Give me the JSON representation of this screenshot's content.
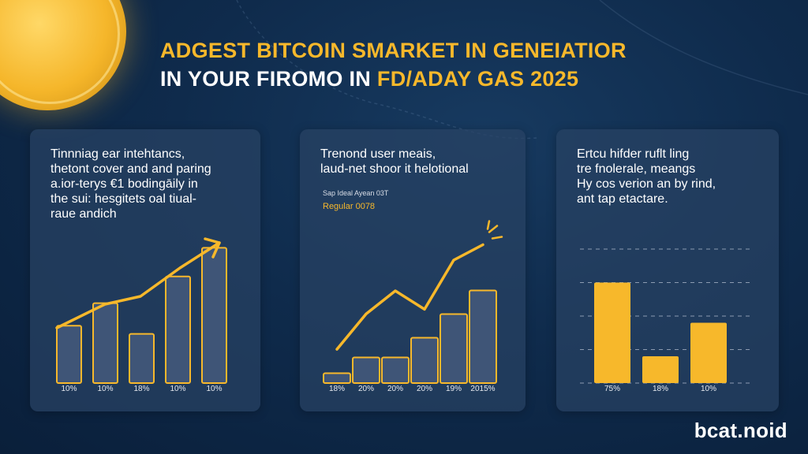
{
  "header": {
    "title_line1": "ADGEST BITCOIN SMARKET IN GENEIATIOR",
    "title_line2_a": "IN YOUR FIROMO IN ",
    "title_line2_b": "FD/ADAY GAS 2025"
  },
  "panels": [
    {
      "text_lines": [
        "Tinnniag ear intehtancs,",
        "thetont cover and and paring",
        "a.ior-terys €1 bodingāily in",
        "the sui: hesgitets oal tiual-",
        "raue andich"
      ]
    },
    {
      "text_lines": [
        "Trenond user meais,",
        "laud-net shoor it helotional"
      ],
      "sub_label": "Sap Ideal Ayean 03T",
      "accent_label": "Regular 0078"
    },
    {
      "text_lines": [
        "Ertcu hifder ruflt ling",
        "tre fnolerale, meangs",
        "Hy cos verion an by rind,",
        "ant tap etactare."
      ]
    }
  ],
  "brand": "bcat.noid",
  "colors": {
    "accent": "#f7b82b",
    "bar_gray": "#3f5577",
    "panel": "#28426a",
    "background": "#0f2b4c"
  },
  "chart_data": [
    {
      "type": "bar",
      "categories": [
        "10%",
        "10%",
        "18%",
        "10%",
        "10%"
      ],
      "values": [
        28,
        39,
        24,
        52,
        66
      ],
      "trend": "up",
      "ylim": [
        0,
        100
      ]
    },
    {
      "type": "bar",
      "categories": [
        "18%",
        "20%",
        "20%",
        "20%",
        "19%",
        "2015%"
      ],
      "values": [
        5,
        13,
        13,
        23,
        35,
        47
      ],
      "line_values": [
        22,
        45,
        60,
        48,
        80,
        90
      ],
      "ylim": [
        0,
        100
      ]
    },
    {
      "type": "bar",
      "categories": [
        "75%",
        "18%",
        "10%"
      ],
      "values": [
        60,
        16,
        36
      ],
      "grid": true,
      "ylim": [
        0,
        80
      ]
    }
  ]
}
